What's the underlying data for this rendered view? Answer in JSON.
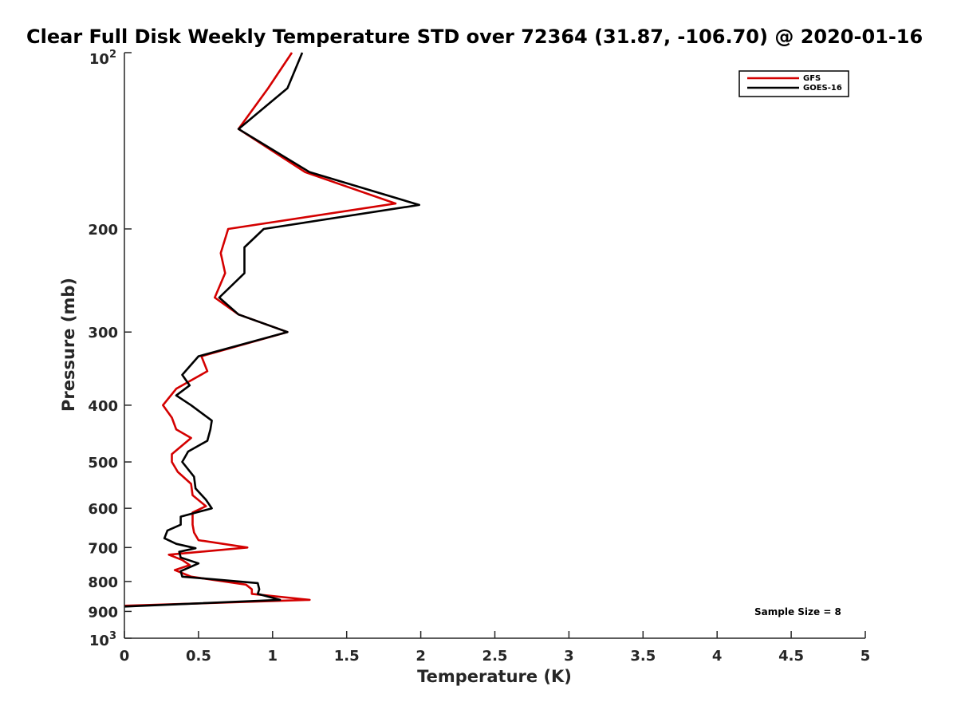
{
  "chart_data": {
    "type": "line",
    "title": "Clear Full Disk Weekly Temperature STD over 72364 (31.87, -106.70) @ 2020-01-16",
    "xlabel": "Temperature (K)",
    "ylabel": "Pressure (mb)",
    "xlim": [
      0,
      5
    ],
    "ylim": [
      100,
      1000
    ],
    "y_scale": "log",
    "y_reversed": true,
    "x_ticks": [
      0,
      0.5,
      1,
      1.5,
      2,
      2.5,
      3,
      3.5,
      4,
      4.5,
      5
    ],
    "x_tick_labels": [
      "0",
      "0.5",
      "1",
      "1.5",
      "2",
      "2.5",
      "3",
      "3.5",
      "4",
      "4.5",
      "5"
    ],
    "y_ticks": [
      200,
      300,
      400,
      500,
      600,
      700,
      800,
      900
    ],
    "y_tick_labels": [
      "200",
      "300",
      "400",
      "500",
      "600",
      "700",
      "800",
      "900"
    ],
    "y_tick_top": {
      "base": "10",
      "exp": "2"
    },
    "y_tick_bottom": {
      "base": "10",
      "exp": "3"
    },
    "grid": false,
    "legend_position": "top-right",
    "annotation": "Sample Size = 8",
    "series": [
      {
        "name": "GFS",
        "color": "#d40000",
        "points": [
          [
            1.13,
            100
          ],
          [
            0.97,
            115
          ],
          [
            0.77,
            135
          ],
          [
            1.22,
            160
          ],
          [
            1.83,
            181
          ],
          [
            0.7,
            200
          ],
          [
            0.65,
            220
          ],
          [
            0.68,
            238
          ],
          [
            0.61,
            262
          ],
          [
            0.77,
            280
          ],
          [
            1.1,
            300
          ],
          [
            0.52,
            330
          ],
          [
            0.56,
            350
          ],
          [
            0.35,
            375
          ],
          [
            0.26,
            400
          ],
          [
            0.32,
            420
          ],
          [
            0.35,
            440
          ],
          [
            0.45,
            455
          ],
          [
            0.32,
            485
          ],
          [
            0.32,
            500
          ],
          [
            0.36,
            520
          ],
          [
            0.45,
            545
          ],
          [
            0.46,
            570
          ],
          [
            0.55,
            595
          ],
          [
            0.46,
            610
          ],
          [
            0.46,
            640
          ],
          [
            0.47,
            660
          ],
          [
            0.5,
            680
          ],
          [
            0.83,
            700
          ],
          [
            0.3,
            720
          ],
          [
            0.39,
            735
          ],
          [
            0.44,
            750
          ],
          [
            0.34,
            765
          ],
          [
            0.45,
            785
          ],
          [
            0.82,
            810
          ],
          [
            0.86,
            825
          ],
          [
            0.86,
            840
          ],
          [
            1.25,
            860
          ],
          [
            0.0,
            880
          ]
        ]
      },
      {
        "name": "GOES-16",
        "color": "#000000",
        "points": [
          [
            1.2,
            100
          ],
          [
            1.1,
            115
          ],
          [
            0.77,
            135
          ],
          [
            1.25,
            160
          ],
          [
            1.99,
            182
          ],
          [
            0.94,
            200
          ],
          [
            0.81,
            215
          ],
          [
            0.81,
            238
          ],
          [
            0.64,
            262
          ],
          [
            0.77,
            280
          ],
          [
            1.1,
            300
          ],
          [
            0.5,
            330
          ],
          [
            0.39,
            355
          ],
          [
            0.44,
            370
          ],
          [
            0.35,
            385
          ],
          [
            0.45,
            400
          ],
          [
            0.59,
            425
          ],
          [
            0.58,
            440
          ],
          [
            0.56,
            460
          ],
          [
            0.43,
            480
          ],
          [
            0.39,
            500
          ],
          [
            0.47,
            530
          ],
          [
            0.48,
            555
          ],
          [
            0.55,
            580
          ],
          [
            0.59,
            600
          ],
          [
            0.38,
            620
          ],
          [
            0.38,
            640
          ],
          [
            0.29,
            655
          ],
          [
            0.27,
            675
          ],
          [
            0.35,
            690
          ],
          [
            0.48,
            702
          ],
          [
            0.37,
            712
          ],
          [
            0.38,
            728
          ],
          [
            0.5,
            745
          ],
          [
            0.38,
            768
          ],
          [
            0.39,
            785
          ],
          [
            0.9,
            805
          ],
          [
            0.91,
            825
          ],
          [
            0.9,
            840
          ],
          [
            1.05,
            860
          ],
          [
            0.0,
            883
          ]
        ]
      }
    ]
  }
}
